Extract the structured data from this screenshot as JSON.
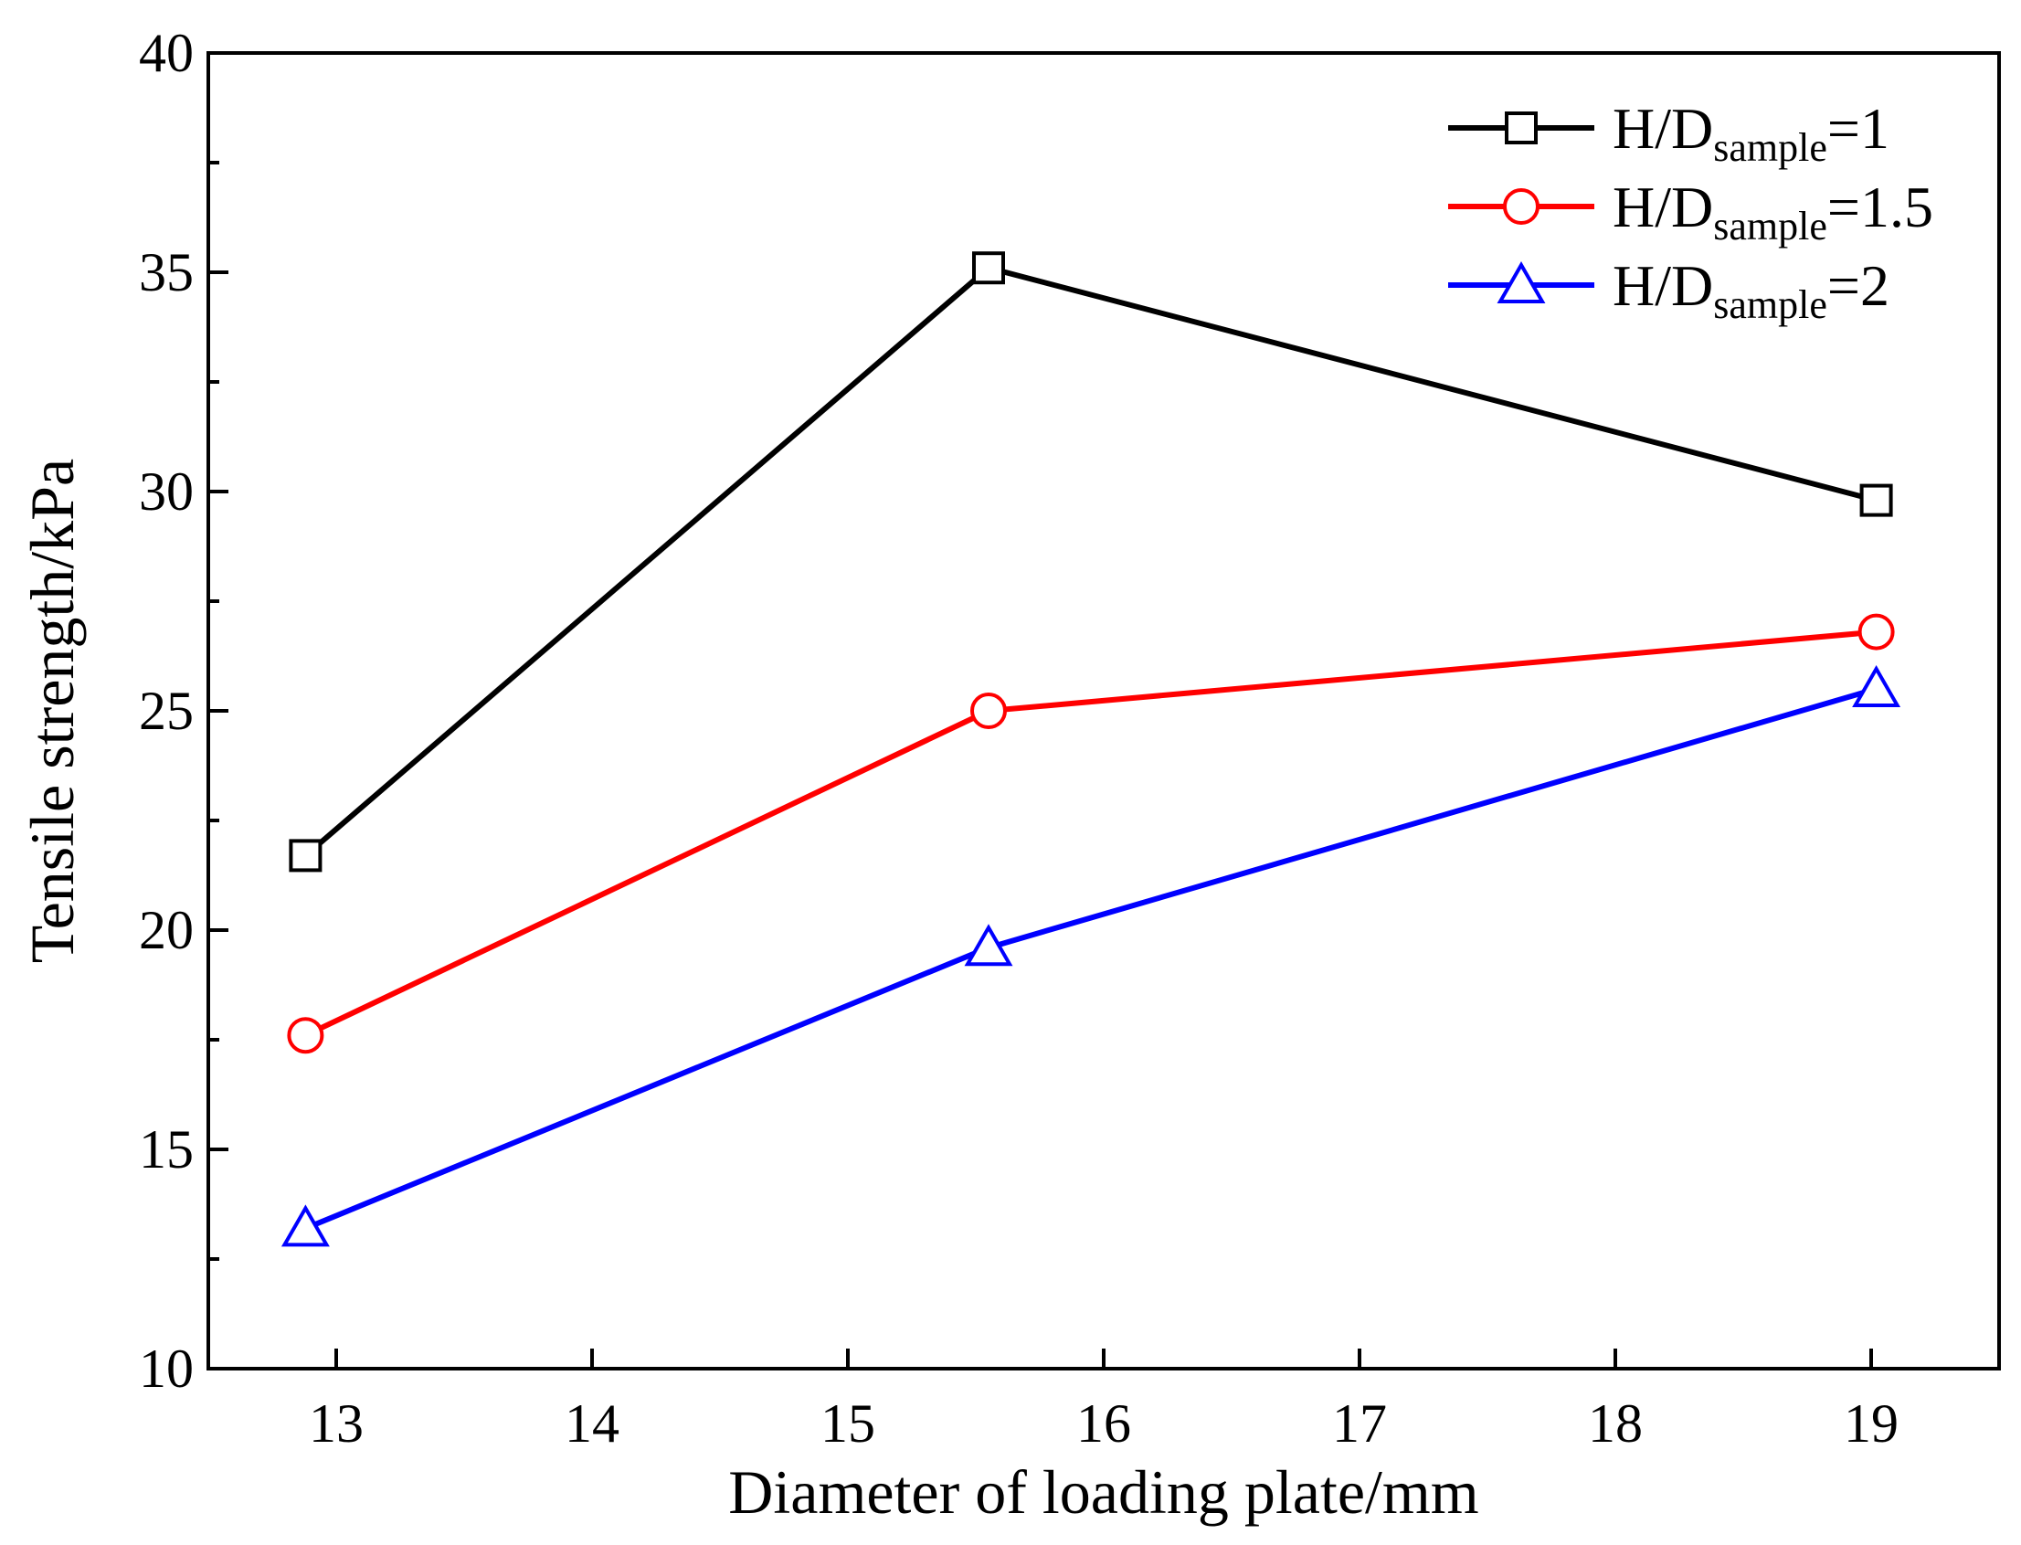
{
  "chart_data": {
    "type": "line",
    "title": "",
    "xlabel": "Diameter of loading plate/mm",
    "ylabel": "Tensile strength/kPa",
    "xlim": [
      12.5,
      19.5
    ],
    "ylim": [
      10,
      40
    ],
    "xticks": [
      13,
      14,
      15,
      16,
      17,
      18,
      19
    ],
    "yticks": [
      10,
      15,
      20,
      25,
      30,
      35,
      40
    ],
    "x": [
      12.88,
      15.55,
      19.02
    ],
    "legend_position": "top-right",
    "series": [
      {
        "name": "H/Dsample=1",
        "name_main": "H/D",
        "name_sub": "sample",
        "name_tail": "=1",
        "values": [
          21.7,
          35.1,
          29.8
        ],
        "color": "#000000",
        "marker": "square"
      },
      {
        "name": "H/Dsample=1.5",
        "name_main": "H/D",
        "name_sub": "sample",
        "name_tail": "=1.5",
        "values": [
          17.6,
          25.0,
          26.8
        ],
        "color": "#ff0000",
        "marker": "circle"
      },
      {
        "name": "H/Dsample=2",
        "name_main": "H/D",
        "name_sub": "sample",
        "name_tail": "=2",
        "values": [
          13.2,
          19.6,
          25.5
        ],
        "color": "#0000ff",
        "marker": "triangle"
      }
    ]
  }
}
